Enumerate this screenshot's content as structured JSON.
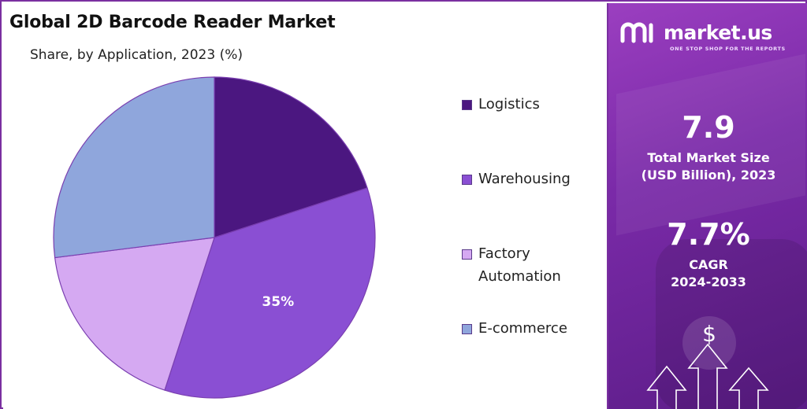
{
  "chart_data": {
    "type": "pie",
    "title": "Global 2D Barcode Reader Market",
    "subtitle": "Share, by Application, 2023 (%)",
    "categories": [
      "Logistics",
      "Warehousing",
      "Factory Automation",
      "E-commerce"
    ],
    "values": [
      20,
      35,
      18,
      27
    ],
    "colors": [
      "#4b1780",
      "#8a4fd3",
      "#d5a9f2",
      "#8fa6dc"
    ],
    "data_labels": [
      "",
      "35%",
      "",
      ""
    ],
    "legend_position": "right"
  },
  "legend": {
    "items": [
      {
        "label": "Logistics",
        "color": "#4b1780"
      },
      {
        "label": "Warehousing",
        "color": "#8a4fd3"
      },
      {
        "label": "Factory\nAutomation",
        "color": "#d5a9f2"
      },
      {
        "label": "E-commerce",
        "color": "#8fa6dc"
      }
    ]
  },
  "sidebar": {
    "brand": "market.us",
    "tagline": "ONE STOP SHOP FOR THE REPORTS",
    "market_size_value": "7.9",
    "market_size_label": "Total Market Size\n(USD Billion), 2023",
    "cagr_value": "7.7%",
    "cagr_label": "CAGR\n2024-2033",
    "currency_symbol": "$"
  }
}
